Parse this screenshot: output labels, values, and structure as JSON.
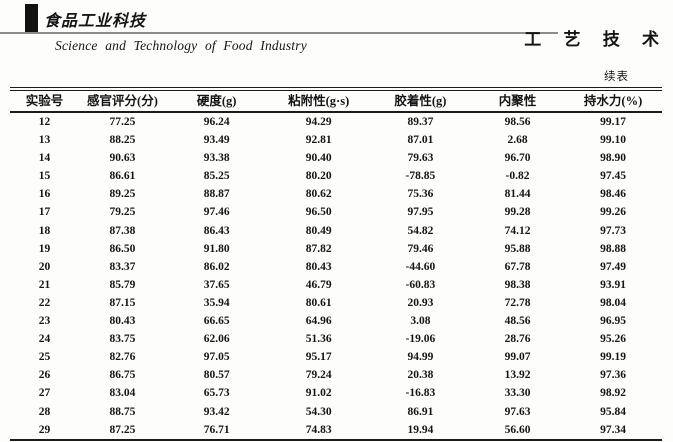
{
  "header": {
    "journal_logo_cn": "食品工业科技",
    "journal_name_en": "Science  and  Technology  of  Food  Industry",
    "section_label": "工 艺 技 术",
    "continued_label": "续表"
  },
  "table": {
    "columns": [
      "实验号",
      "感官评分(分)",
      "硬度(g)",
      "粘附性(g·s)",
      "胶着性(g)",
      "内聚性",
      "持水力(%)"
    ],
    "rows": [
      [
        "12",
        "77.25",
        "96.24",
        "94.29",
        "89.37",
        "98.56",
        "99.17"
      ],
      [
        "13",
        "88.25",
        "93.49",
        "92.81",
        "87.01",
        "2.68",
        "99.10"
      ],
      [
        "14",
        "90.63",
        "93.38",
        "90.40",
        "79.63",
        "96.70",
        "98.90"
      ],
      [
        "15",
        "86.61",
        "85.25",
        "80.20",
        "-78.85",
        "-0.82",
        "97.45"
      ],
      [
        "16",
        "89.25",
        "88.87",
        "80.62",
        "75.36",
        "81.44",
        "98.46"
      ],
      [
        "17",
        "79.25",
        "97.46",
        "96.50",
        "97.95",
        "99.28",
        "99.26"
      ],
      [
        "18",
        "87.38",
        "86.43",
        "80.49",
        "54.82",
        "74.12",
        "97.73"
      ],
      [
        "19",
        "86.50",
        "91.80",
        "87.82",
        "79.46",
        "95.88",
        "98.88"
      ],
      [
        "20",
        "83.37",
        "86.02",
        "80.43",
        "-44.60",
        "67.78",
        "97.49"
      ],
      [
        "21",
        "85.79",
        "37.65",
        "46.79",
        "-60.83",
        "98.38",
        "93.91"
      ],
      [
        "22",
        "87.15",
        "35.94",
        "80.61",
        "20.93",
        "72.78",
        "98.04"
      ],
      [
        "23",
        "80.43",
        "66.65",
        "64.96",
        "3.08",
        "48.56",
        "96.95"
      ],
      [
        "24",
        "83.75",
        "62.06",
        "51.36",
        "-19.06",
        "28.76",
        "95.26"
      ],
      [
        "25",
        "82.76",
        "97.05",
        "95.17",
        "94.99",
        "99.07",
        "99.19"
      ],
      [
        "26",
        "86.75",
        "80.57",
        "79.24",
        "20.38",
        "13.92",
        "97.36"
      ],
      [
        "27",
        "83.04",
        "65.73",
        "91.02",
        "-16.83",
        "33.30",
        "98.92"
      ],
      [
        "28",
        "88.75",
        "93.42",
        "54.30",
        "86.91",
        "97.63",
        "95.84"
      ],
      [
        "29",
        "87.25",
        "76.71",
        "74.83",
        "19.94",
        "56.60",
        "97.34"
      ]
    ]
  },
  "colors": {
    "text": "#151515",
    "rule_gray": "#8c8c8c",
    "table_line": "#1b1b1b",
    "background": "#fdfdfc"
  }
}
